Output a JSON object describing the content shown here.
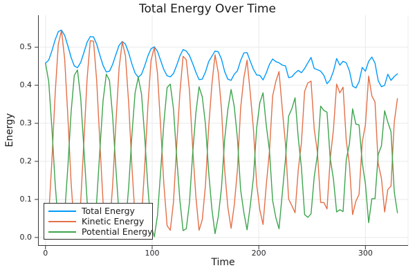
{
  "chart_data": {
    "type": "line",
    "title": "Total Energy Over Time",
    "xlabel": "Time",
    "ylabel": "Energy",
    "xlim": [
      -7,
      340
    ],
    "ylim": [
      -0.022,
      0.584
    ],
    "grid": true,
    "legend_position": "bottom-left",
    "x_ticks": [
      0,
      100,
      200,
      300
    ],
    "x_tick_labels": [
      "0",
      "100",
      "200",
      "300"
    ],
    "y_ticks": [
      0.0,
      0.1,
      0.2,
      0.3,
      0.4,
      0.5
    ],
    "y_tick_labels": [
      "0.0",
      "0.1",
      "0.2",
      "0.3",
      "0.4",
      "0.5"
    ],
    "x": [
      0,
      3,
      6,
      9,
      12,
      15,
      18,
      21,
      24,
      27,
      30,
      33,
      36,
      39,
      42,
      45,
      48,
      51,
      54,
      57,
      60,
      63,
      66,
      69,
      72,
      75,
      78,
      81,
      84,
      87,
      90,
      93,
      96,
      99,
      102,
      105,
      108,
      111,
      114,
      117,
      120,
      123,
      126,
      129,
      132,
      135,
      138,
      141,
      144,
      147,
      150,
      153,
      156,
      159,
      162,
      165,
      168,
      171,
      174,
      177,
      180,
      183,
      186,
      189,
      192,
      195,
      198,
      201,
      204,
      207,
      210,
      213,
      216,
      219,
      222,
      225,
      228,
      231,
      234,
      237,
      240,
      243,
      246,
      249,
      252,
      255,
      258,
      261,
      264,
      267,
      270,
      273,
      276,
      279,
      282,
      285,
      288,
      291,
      294,
      297,
      300,
      303,
      306,
      309,
      312,
      315,
      318,
      321,
      324,
      327,
      330
    ],
    "series": [
      {
        "name": "Total Energy",
        "color": "#009AFA",
        "values": [
          0.458,
          0.466,
          0.49,
          0.519,
          0.541,
          0.545,
          0.531,
          0.503,
          0.473,
          0.451,
          0.446,
          0.46,
          0.486,
          0.513,
          0.528,
          0.527,
          0.508,
          0.479,
          0.452,
          0.435,
          0.437,
          0.455,
          0.481,
          0.505,
          0.515,
          0.508,
          0.485,
          0.456,
          0.432,
          0.421,
          0.429,
          0.451,
          0.477,
          0.496,
          0.501,
          0.489,
          0.465,
          0.441,
          0.425,
          0.422,
          0.431,
          0.452,
          0.477,
          0.494,
          0.49,
          0.478,
          0.457,
          0.434,
          0.415,
          0.416,
          0.435,
          0.462,
          0.476,
          0.49,
          0.488,
          0.469,
          0.436,
          0.416,
          0.413,
          0.429,
          0.438,
          0.465,
          0.485,
          0.486,
          0.463,
          0.442,
          0.427,
          0.426,
          0.414,
          0.432,
          0.455,
          0.469,
          0.462,
          0.459,
          0.453,
          0.451,
          0.42,
          0.422,
          0.432,
          0.439,
          0.433,
          0.444,
          0.459,
          0.473,
          0.444,
          0.441,
          0.437,
          0.426,
          0.404,
          0.414,
          0.437,
          0.47,
          0.453,
          0.463,
          0.459,
          0.438,
          0.398,
          0.393,
          0.409,
          0.447,
          0.437,
          0.463,
          0.474,
          0.458,
          0.412,
          0.396,
          0.4,
          0.429,
          0.413,
          0.423,
          0.43
        ]
      },
      {
        "name": "Kinetic Energy",
        "color": "#E36F47",
        "values": [
          0.0,
          0.056,
          0.201,
          0.376,
          0.508,
          0.544,
          0.469,
          0.315,
          0.144,
          0.025,
          0.006,
          0.094,
          0.253,
          0.416,
          0.517,
          0.516,
          0.412,
          0.249,
          0.093,
          0.006,
          0.024,
          0.138,
          0.301,
          0.446,
          0.514,
          0.477,
          0.351,
          0.187,
          0.052,
          0.0,
          0.052,
          0.186,
          0.345,
          0.466,
          0.499,
          0.431,
          0.29,
          0.14,
          0.031,
          0.019,
          0.093,
          0.239,
          0.38,
          0.476,
          0.467,
          0.387,
          0.235,
          0.107,
          0.019,
          0.046,
          0.138,
          0.29,
          0.401,
          0.48,
          0.433,
          0.339,
          0.178,
          0.08,
          0.024,
          0.085,
          0.178,
          0.34,
          0.42,
          0.466,
          0.38,
          0.285,
          0.139,
          0.072,
          0.034,
          0.136,
          0.227,
          0.372,
          0.41,
          0.436,
          0.338,
          0.246,
          0.101,
          0.084,
          0.065,
          0.177,
          0.249,
          0.384,
          0.406,
          0.411,
          0.285,
          0.224,
          0.092,
          0.092,
          0.075,
          0.206,
          0.284,
          0.403,
          0.38,
          0.395,
          0.255,
          0.192,
          0.06,
          0.095,
          0.113,
          0.25,
          0.296,
          0.424,
          0.372,
          0.356,
          0.194,
          0.155,
          0.067,
          0.126,
          0.135,
          0.303,
          0.365
        ]
      },
      {
        "name": "Potential Energy",
        "color": "#3DA44D",
        "values": [
          0.458,
          0.41,
          0.289,
          0.143,
          0.033,
          0.001,
          0.062,
          0.188,
          0.329,
          0.426,
          0.44,
          0.366,
          0.233,
          0.097,
          0.011,
          0.011,
          0.096,
          0.23,
          0.359,
          0.429,
          0.413,
          0.317,
          0.18,
          0.059,
          0.001,
          0.031,
          0.134,
          0.269,
          0.38,
          0.421,
          0.377,
          0.265,
          0.132,
          0.03,
          0.002,
          0.058,
          0.175,
          0.301,
          0.394,
          0.403,
          0.338,
          0.213,
          0.097,
          0.018,
          0.023,
          0.091,
          0.222,
          0.327,
          0.396,
          0.37,
          0.297,
          0.172,
          0.075,
          0.01,
          0.055,
          0.13,
          0.258,
          0.336,
          0.389,
          0.344,
          0.26,
          0.125,
          0.065,
          0.02,
          0.083,
          0.157,
          0.288,
          0.354,
          0.38,
          0.296,
          0.228,
          0.097,
          0.052,
          0.023,
          0.115,
          0.205,
          0.319,
          0.338,
          0.367,
          0.262,
          0.184,
          0.06,
          0.053,
          0.062,
          0.159,
          0.217,
          0.345,
          0.334,
          0.329,
          0.208,
          0.153,
          0.067,
          0.073,
          0.068,
          0.204,
          0.246,
          0.338,
          0.298,
          0.296,
          0.197,
          0.141,
          0.039,
          0.102,
          0.102,
          0.218,
          0.241,
          0.333,
          0.303,
          0.278,
          0.12,
          0.065
        ]
      }
    ],
    "style": {
      "grid_color": "#e9e9e9",
      "spine_color": "#36363a",
      "right_border_color": "#eeeeee",
      "line_width": 1.4
    }
  }
}
